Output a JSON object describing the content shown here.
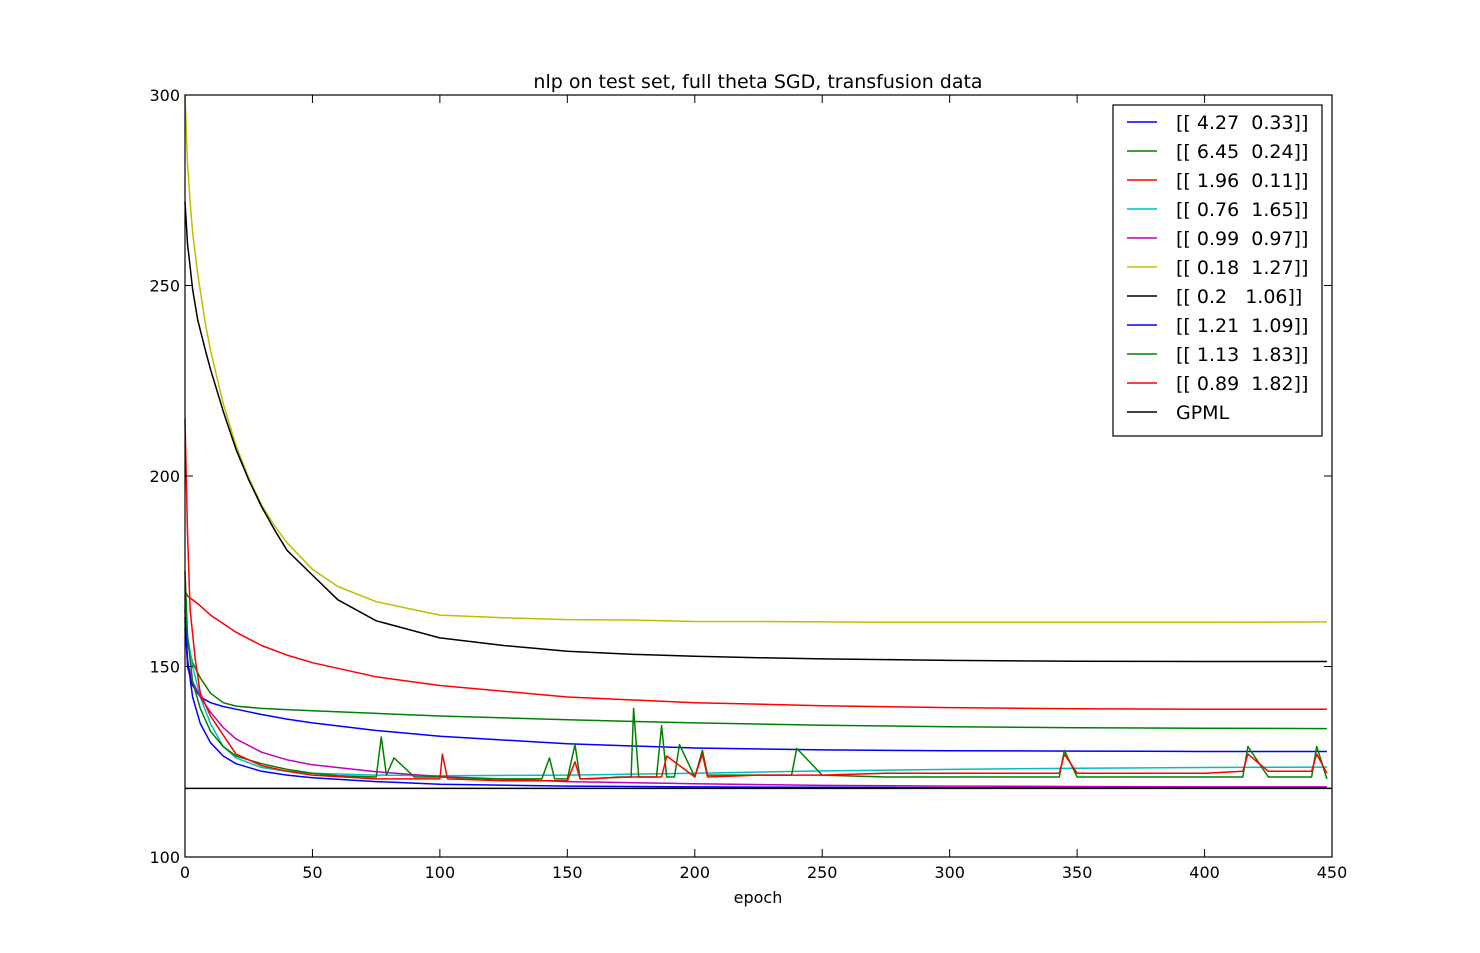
{
  "chart_data": {
    "type": "line",
    "title": "nlp on test set, full theta SGD, transfusion data",
    "xlabel": "epoch",
    "ylabel": "",
    "xlim": [
      0,
      450
    ],
    "ylim": [
      100,
      300
    ],
    "xticks": [
      0,
      50,
      100,
      150,
      200,
      250,
      300,
      350,
      400,
      450
    ],
    "yticks": [
      100,
      150,
      200,
      250,
      300
    ],
    "grid": false,
    "legend_position": "top-right",
    "series": [
      {
        "name": "[[ 4.27  0.33]]",
        "color": "#0000ff",
        "x": [
          0,
          1,
          3,
          6,
          10,
          15,
          20,
          30,
          40,
          50,
          75,
          100,
          150,
          200,
          250,
          300,
          350,
          400,
          448
        ],
        "y": [
          165,
          150,
          145,
          142,
          140.5,
          139.5,
          138.8,
          137.4,
          136.2,
          135.2,
          133.2,
          131.7,
          129.7,
          128.6,
          128.1,
          127.9,
          127.8,
          127.7,
          127.7
        ]
      },
      {
        "name": "[[ 6.45  0.24]]",
        "color": "#008000",
        "x": [
          0,
          1,
          3,
          6,
          10,
          15,
          20,
          30,
          40,
          50,
          75,
          100,
          150,
          200,
          250,
          300,
          350,
          400,
          448
        ],
        "y": [
          162,
          156,
          151,
          147,
          143,
          140.5,
          139.6,
          139.0,
          138.7,
          138.4,
          137.7,
          137.0,
          136.0,
          135.2,
          134.6,
          134.2,
          133.9,
          133.8,
          133.7
        ]
      },
      {
        "name": "[[ 1.96  0.11]]",
        "color": "#ff0000",
        "x": [
          0,
          1,
          5,
          10,
          20,
          30,
          40,
          50,
          75,
          100,
          150,
          200,
          250,
          300,
          350,
          400,
          448
        ],
        "y": [
          170,
          168.5,
          166.5,
          163.5,
          159,
          155.5,
          153,
          151,
          147.3,
          145,
          142,
          140.5,
          139.7,
          139.2,
          138.9,
          138.8,
          138.8
        ]
      },
      {
        "name": "[[ 0.76  1.65]]",
        "color": "#00bfbf",
        "x": [
          0,
          1,
          3,
          6,
          10,
          15,
          20,
          30,
          40,
          50,
          75,
          100,
          150,
          200,
          250,
          300,
          350,
          400,
          448
        ],
        "y": [
          168,
          158,
          150,
          142,
          135,
          129,
          126,
          123.5,
          122.5,
          122,
          121.5,
          121.3,
          121.5,
          122,
          122.6,
          123,
          123.3,
          123.5,
          123.6
        ]
      },
      {
        "name": "[[ 0.99  0.97]]",
        "color": "#bf00bf",
        "x": [
          0,
          1,
          3,
          6,
          10,
          15,
          20,
          30,
          40,
          50,
          75,
          100,
          150,
          200,
          250,
          300,
          350,
          400,
          448
        ],
        "y": [
          160,
          151,
          146,
          142,
          138,
          134,
          131,
          127.5,
          125.5,
          124.2,
          122.4,
          121.1,
          119.8,
          119.2,
          118.8,
          118.6,
          118.5,
          118.4,
          118.4
        ]
      },
      {
        "name": "[[ 0.18  1.27]]",
        "color": "#bfbf00",
        "x": [
          0,
          1,
          2,
          3,
          5,
          8,
          10,
          15,
          20,
          25,
          30,
          35,
          40,
          50,
          60,
          75,
          100,
          125,
          150,
          175,
          200,
          225,
          250,
          275,
          300,
          350,
          400,
          448
        ],
        "y": [
          300,
          282,
          272,
          264,
          253,
          240,
          233,
          219,
          208,
          199.5,
          192.5,
          187,
          182.5,
          175.5,
          171,
          167,
          163.5,
          162.8,
          162.3,
          162.2,
          161.8,
          161.8,
          161.7,
          161.6,
          161.6,
          161.6,
          161.6,
          161.7
        ]
      },
      {
        "name": "[[ 0.2   1.06]]",
        "color": "#000000",
        "x": [
          0,
          1,
          2,
          3,
          5,
          8,
          10,
          15,
          20,
          25,
          30,
          35,
          40,
          50,
          60,
          75,
          100,
          125,
          150,
          175,
          200,
          225,
          250,
          275,
          300,
          350,
          400,
          448
        ],
        "y": [
          272,
          261,
          255,
          249,
          241,
          233,
          228,
          217,
          207,
          199,
          192,
          186,
          180.5,
          174,
          167.5,
          162,
          157.5,
          155.5,
          154,
          153.2,
          152.7,
          152.3,
          152,
          151.8,
          151.6,
          151.4,
          151.3,
          151.3
        ]
      },
      {
        "name": "[[ 1.21  1.09]]",
        "color": "#0000ff",
        "x": [
          0,
          1,
          3,
          6,
          10,
          15,
          20,
          30,
          40,
          50,
          75,
          100,
          150,
          200,
          250,
          300,
          350,
          400,
          448
        ],
        "y": [
          163,
          152,
          142,
          135,
          130,
          126.5,
          124.5,
          122.5,
          121.5,
          120.8,
          119.8,
          119.1,
          118.6,
          118.4,
          118.3,
          118.2,
          118.2,
          118.1,
          118.1
        ]
      },
      {
        "name": "[[ 1.13  1.83]]",
        "color": "#008000",
        "x": [
          0,
          1,
          3,
          6,
          10,
          15,
          20,
          30,
          40,
          50,
          60,
          75,
          77,
          79,
          82,
          90,
          100,
          120,
          140,
          143,
          145,
          150,
          153,
          155,
          160,
          170,
          175,
          176,
          178,
          185,
          187,
          189,
          192,
          194,
          200,
          203,
          205,
          215,
          225,
          238,
          240,
          250,
          275,
          300,
          325,
          343,
          345,
          350,
          375,
          400,
          415,
          417,
          425,
          442,
          444,
          448
        ],
        "y": [
          175,
          158,
          146,
          139,
          133,
          129,
          126.5,
          124.5,
          123,
          122,
          121.3,
          121,
          131.5,
          121.5,
          126,
          121,
          121,
          120.5,
          120.5,
          126,
          120.5,
          120.5,
          129.5,
          120.5,
          120.5,
          121,
          121,
          139,
          121,
          121,
          134.5,
          121,
          121,
          129.5,
          121,
          128,
          121.5,
          121.5,
          121.5,
          121.5,
          128.5,
          121.5,
          121,
          121,
          121,
          121,
          128,
          121,
          121,
          121,
          121,
          129,
          121,
          121,
          129,
          120.5
        ]
      },
      {
        "name": "[[ 0.89  1.82]]",
        "color": "#ff0000",
        "x": [
          0,
          1,
          2,
          4,
          6,
          10,
          15,
          20,
          30,
          40,
          50,
          75,
          100,
          101,
          103,
          125,
          150,
          153,
          155,
          175,
          187,
          189,
          200,
          203,
          205,
          225,
          250,
          275,
          300,
          325,
          343,
          345,
          350,
          375,
          400,
          415,
          417,
          425,
          442,
          444,
          448
        ],
        "y": [
          215,
          185,
          165,
          152,
          143,
          137,
          132,
          127,
          124,
          122.5,
          121.5,
          120.5,
          120.5,
          127,
          120.5,
          120,
          120,
          125,
          120.5,
          121,
          121,
          126.5,
          121,
          127,
          121,
          121.5,
          121.5,
          122,
          122,
          122,
          122,
          127,
          122,
          122,
          122,
          122.5,
          127,
          122.5,
          122.5,
          127,
          122
        ]
      },
      {
        "name": "GPML",
        "color": "#000000",
        "x": [
          0,
          450
        ],
        "y": [
          118,
          118
        ]
      }
    ]
  }
}
